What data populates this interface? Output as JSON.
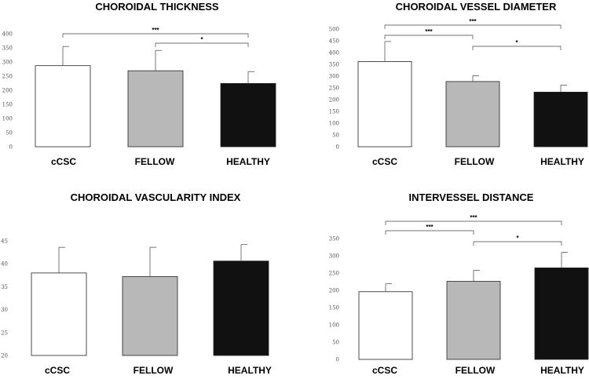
{
  "chart_data": [
    {
      "type": "bar",
      "title": "CHOROIDAL THICKNESS",
      "categories": [
        "cCSC",
        "FELLOW",
        "HEALTHY"
      ],
      "values": [
        287,
        269,
        224
      ],
      "errors": [
        68,
        72,
        42
      ],
      "colors": [
        "#ffffff",
        "#b8b8b8",
        "#111111"
      ],
      "ylim": [
        0,
        400
      ],
      "yticks": [
        "0",
        "50",
        "100",
        "150",
        "200",
        "250",
        "300",
        "350",
        "400"
      ],
      "significance": [
        {
          "from": 0,
          "to": 2,
          "label": "***"
        },
        {
          "from": 1,
          "to": 2,
          "label": "*"
        }
      ]
    },
    {
      "type": "bar",
      "title": "CHOROIDAL VESSEL DIAMETER",
      "categories": [
        "cCSC",
        "FELLOW",
        "HEALTHY"
      ],
      "values": [
        362,
        277,
        232
      ],
      "errors": [
        85,
        25,
        30
      ],
      "colors": [
        "#ffffff",
        "#b8b8b8",
        "#111111"
      ],
      "ylim": [
        0,
        500
      ],
      "yticks": [
        "0",
        "50",
        "100",
        "150",
        "200",
        "250",
        "300",
        "350",
        "400",
        "450",
        "500"
      ],
      "significance": [
        {
          "from": 0,
          "to": 2,
          "label": "***"
        },
        {
          "from": 0,
          "to": 1,
          "label": "***"
        },
        {
          "from": 1,
          "to": 2,
          "label": "*"
        }
      ]
    },
    {
      "type": "bar",
      "title": "CHOROIDAL VASCULARITY INDEX",
      "categories": [
        "cCSC",
        "FELLOW",
        "HEALTHY"
      ],
      "values": [
        38,
        37.2,
        40.6
      ],
      "errors": [
        5.6,
        6.4,
        3.6
      ],
      "colors": [
        "#ffffff",
        "#b8b8b8",
        "#111111"
      ],
      "ylim": [
        20,
        45
      ],
      "yticks": [
        "20",
        "25",
        "30",
        "35",
        "40",
        "45"
      ],
      "significance": []
    },
    {
      "type": "bar",
      "title": "INTERVESSEL DISTANCE",
      "categories": [
        "cCSC",
        "FELLOW",
        "HEALTHY"
      ],
      "values": [
        196,
        226,
        265
      ],
      "errors": [
        23,
        32,
        45
      ],
      "colors": [
        "#ffffff",
        "#b8b8b8",
        "#111111"
      ],
      "ylim": [
        0,
        350
      ],
      "yticks": [
        "0",
        "50",
        "100",
        "150",
        "200",
        "250",
        "300",
        "350"
      ],
      "significance": [
        {
          "from": 0,
          "to": 2,
          "label": "***"
        },
        {
          "from": 0,
          "to": 1,
          "label": "***"
        },
        {
          "from": 1,
          "to": 2,
          "label": "*"
        }
      ]
    }
  ]
}
